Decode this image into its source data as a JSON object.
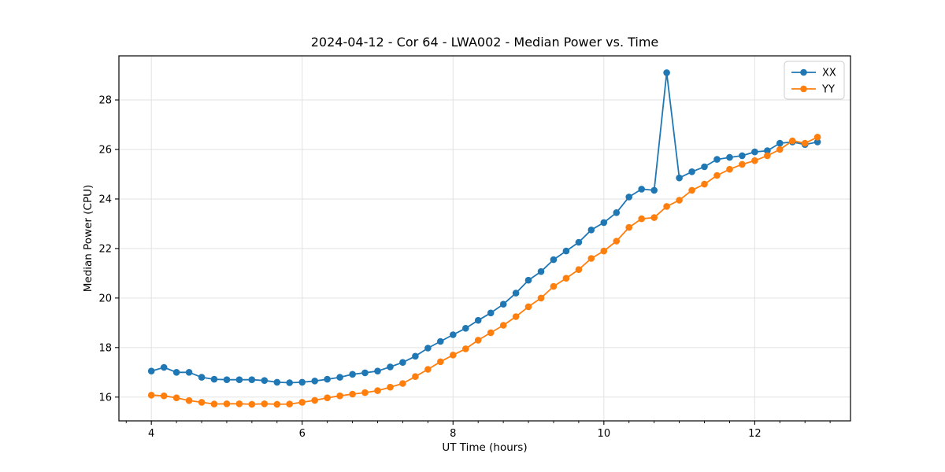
{
  "window": {
    "background": "#ffffff"
  },
  "chart_data": {
    "type": "line",
    "title": "2024-04-12 - Cor 64 - LWA002 - Median Power vs. Time",
    "xlabel": "UT Time (hours)",
    "ylabel": "Median Power (CPU)",
    "xlim": [
      3.57,
      13.27
    ],
    "ylim": [
      15.04,
      29.78
    ],
    "x_ticks": [
      4,
      6,
      8,
      10,
      12
    ],
    "y_ticks": [
      16,
      18,
      20,
      22,
      24,
      26,
      28
    ],
    "x_minor_step": 0.33333,
    "grid": true,
    "grid_color": "#e2e2e2",
    "spine_color": "#000000",
    "legend_position": "upper right",
    "legend_border_color": "#cccccc",
    "x": [
      4.0,
      4.167,
      4.333,
      4.5,
      4.667,
      4.833,
      5.0,
      5.167,
      5.333,
      5.5,
      5.667,
      5.833,
      6.0,
      6.167,
      6.333,
      6.5,
      6.667,
      6.833,
      7.0,
      7.167,
      7.333,
      7.5,
      7.667,
      7.833,
      8.0,
      8.167,
      8.333,
      8.5,
      8.667,
      8.833,
      9.0,
      9.167,
      9.333,
      9.5,
      9.667,
      9.833,
      10.0,
      10.167,
      10.333,
      10.5,
      10.667,
      10.833,
      11.0,
      11.167,
      11.333,
      11.5,
      11.667,
      11.833,
      12.0,
      12.167,
      12.333,
      12.5,
      12.667,
      12.833
    ],
    "series": [
      {
        "name": "XX",
        "color": "#1f77b4",
        "values": [
          17.05,
          17.2,
          17.0,
          17.0,
          16.8,
          16.72,
          16.7,
          16.7,
          16.7,
          16.67,
          16.6,
          16.58,
          16.6,
          16.65,
          16.72,
          16.8,
          16.92,
          16.98,
          17.05,
          17.22,
          17.4,
          17.65,
          17.98,
          18.25,
          18.52,
          18.78,
          19.1,
          19.4,
          19.75,
          20.2,
          20.72,
          21.07,
          21.55,
          21.9,
          22.25,
          22.75,
          23.05,
          23.45,
          24.08,
          24.4,
          24.35,
          29.1,
          24.85,
          25.1,
          25.3,
          25.6,
          25.68,
          25.75,
          25.9,
          25.95,
          26.25,
          26.3,
          26.2,
          26.3
        ]
      },
      {
        "name": "YY",
        "color": "#ff7f0e",
        "values": [
          16.08,
          16.05,
          15.97,
          15.86,
          15.79,
          15.72,
          15.73,
          15.73,
          15.71,
          15.73,
          15.71,
          15.72,
          15.79,
          15.87,
          15.97,
          16.05,
          16.12,
          16.18,
          16.26,
          16.4,
          16.55,
          16.83,
          17.12,
          17.43,
          17.7,
          17.95,
          18.3,
          18.6,
          18.9,
          19.25,
          19.65,
          20.0,
          20.47,
          20.8,
          21.15,
          21.6,
          21.9,
          22.3,
          22.85,
          23.2,
          23.25,
          23.7,
          23.95,
          24.35,
          24.6,
          24.95,
          25.2,
          25.4,
          25.55,
          25.75,
          26.0,
          26.35,
          26.25,
          26.5
        ]
      }
    ]
  }
}
